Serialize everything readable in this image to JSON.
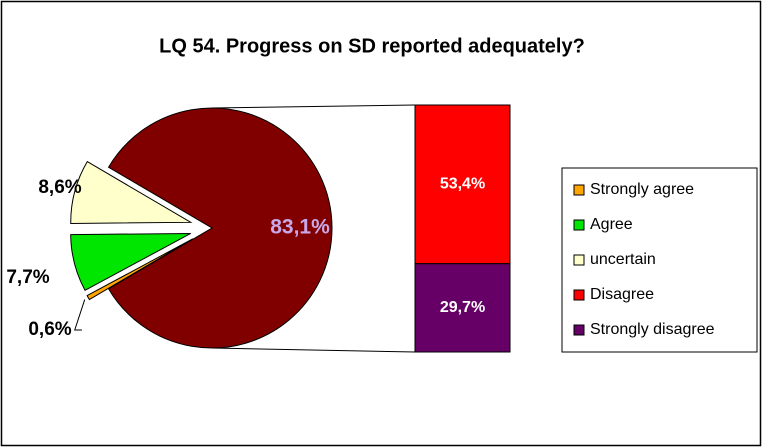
{
  "chart_data": {
    "type": "bar-of-pie",
    "title": "LQ 54. Progress on SD reported adequately?",
    "categories": [
      "Strongly agree",
      "Agree",
      "uncertain",
      "Disagree",
      "Strongly disagree"
    ],
    "values": [
      0.6,
      7.7,
      8.6,
      53.4,
      29.7
    ],
    "value_labels": [
      "0,6%",
      "7,7%",
      "8,6%",
      "53,4%",
      "29,7%"
    ],
    "colors": [
      "#ffa500",
      "#00e600",
      "#ffffcc",
      "#ff0000",
      "#660066"
    ],
    "combined_value": 83.1,
    "combined_label": "83,1%",
    "combined_color": "#800000",
    "legend": "right"
  }
}
